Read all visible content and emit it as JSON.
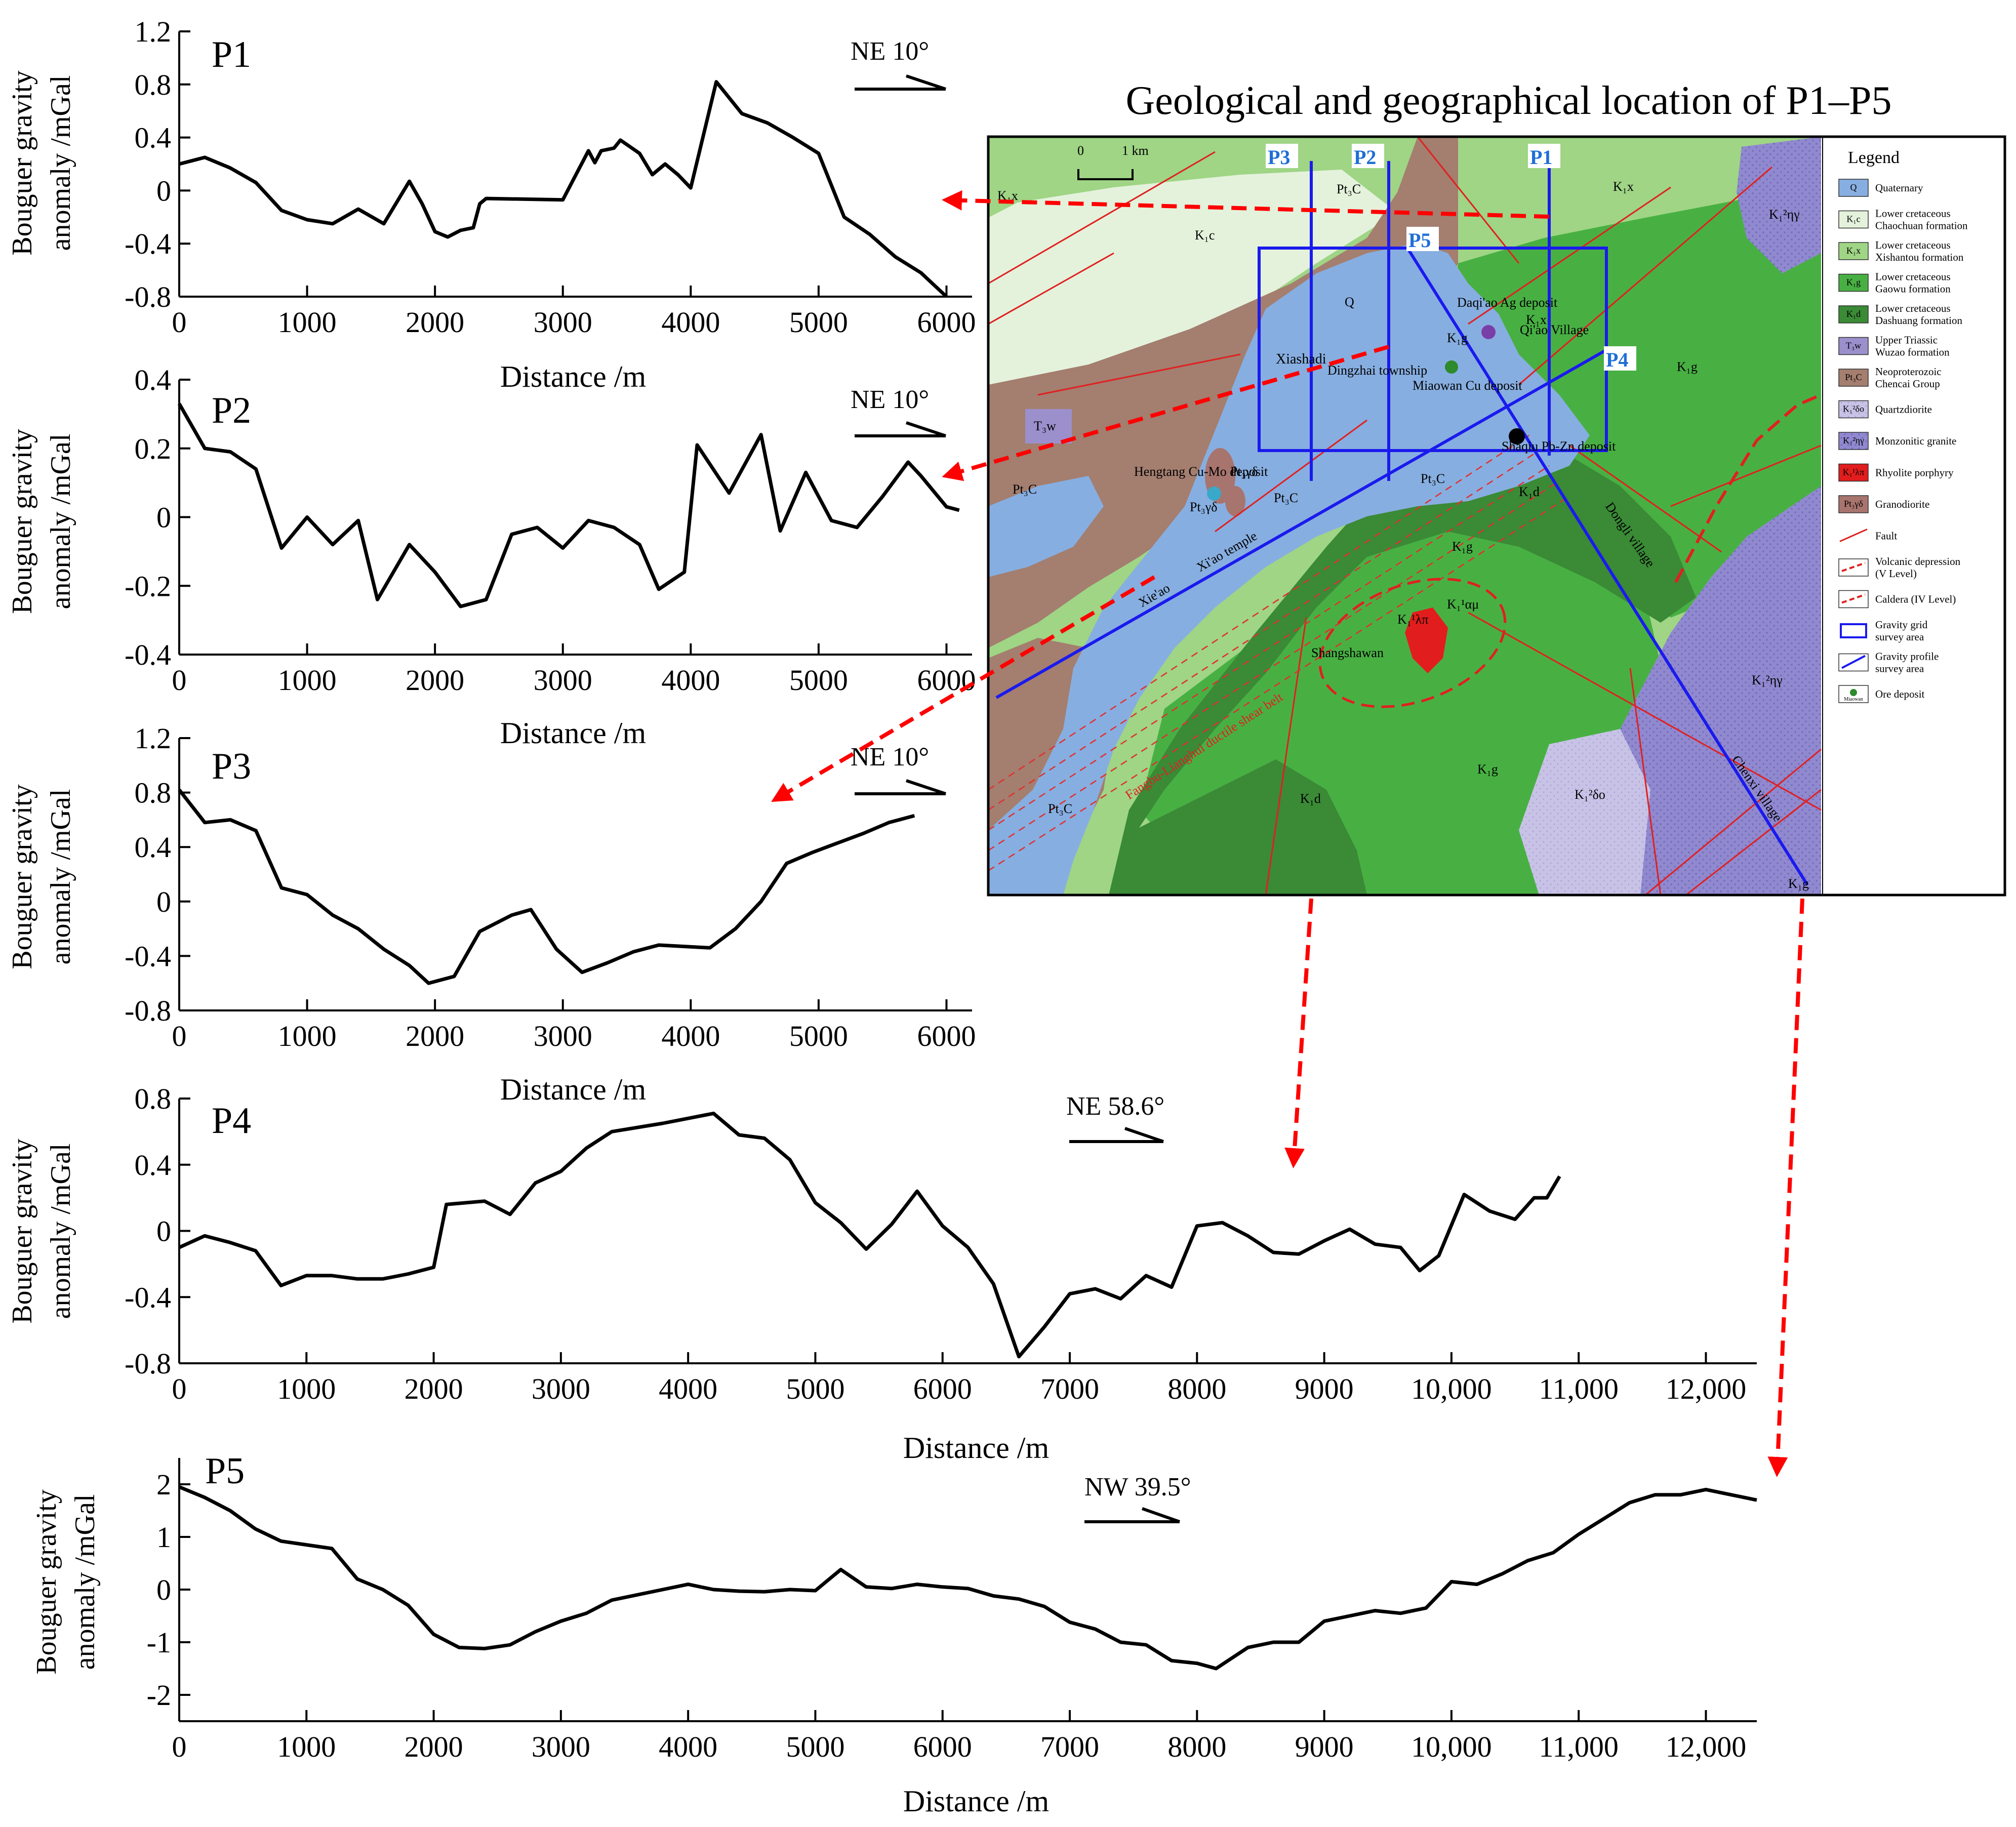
{
  "figure_title": "Geological and geographical location of P1–P5",
  "colors": {
    "line": "#000000",
    "arrow": "#ff0000",
    "profile_line": "#1a1aee",
    "profile_label": "#1f6fd6",
    "quaternary": "#87aee0",
    "chaochuan": "#e4f2dc",
    "xishantou": "#9fd585",
    "gaowu": "#48b043",
    "dashuang": "#3a8a36",
    "wuzao": "#9b8fcc",
    "chencai": "#a47e6f",
    "quartzdiorite": "#c8c3e6",
    "monzonitic": "#9089cf",
    "rhyolite": "#e21d1d",
    "granodiorite": "#a8746e"
  },
  "chart_data": [
    {
      "type": "line",
      "label": "P1",
      "xlabel": "Distance /m",
      "ylabel_line1": "Bouguer gravity",
      "ylabel_line2": "anomaly /mGal",
      "direction": "NE 10°",
      "xlim": [
        0,
        6200
      ],
      "ylim": [
        -0.8,
        1.2
      ],
      "xticks": [
        0,
        1000,
        2000,
        3000,
        4000,
        5000,
        6000
      ],
      "xtick_labels": [
        "0",
        "1000",
        "2000",
        "3000",
        "4000",
        "5000",
        "6000"
      ],
      "yticks": [
        -0.8,
        -0.4,
        0,
        0.4,
        0.8,
        1.2
      ],
      "ytick_labels": [
        "-0.8",
        "-0.4",
        "0",
        "0.4",
        "0.8",
        "1.2"
      ],
      "x": [
        0,
        200,
        400,
        600,
        800,
        1000,
        1200,
        1400,
        1600,
        1800,
        1900,
        2000,
        2100,
        2200,
        2300,
        2350,
        2400,
        3000,
        3200,
        3250,
        3300,
        3400,
        3450,
        3600,
        3700,
        3800,
        3900,
        4000,
        4200,
        4400,
        4600,
        4800,
        5000,
        5200,
        5400,
        5600,
        5800,
        6000
      ],
      "values": [
        0.2,
        0.25,
        0.17,
        0.06,
        -0.15,
        -0.22,
        -0.25,
        -0.14,
        -0.25,
        0.07,
        -0.1,
        -0.31,
        -0.35,
        -0.3,
        -0.28,
        -0.1,
        -0.06,
        -0.07,
        0.3,
        0.21,
        0.3,
        0.32,
        0.38,
        0.28,
        0.12,
        0.2,
        0.12,
        0.02,
        0.82,
        0.58,
        0.51,
        0.4,
        0.28,
        -0.2,
        -0.33,
        -0.5,
        -0.62,
        -0.8
      ]
    },
    {
      "type": "line",
      "label": "P2",
      "xlabel": "Distance /m",
      "ylabel_line1": "Bouguer gravity",
      "ylabel_line2": "anomaly /mGal",
      "direction": "NE 10°",
      "xlim": [
        0,
        6200
      ],
      "ylim": [
        -0.4,
        0.4
      ],
      "xticks": [
        0,
        1000,
        2000,
        3000,
        4000,
        5000,
        6000
      ],
      "xtick_labels": [
        "0",
        "1000",
        "2000",
        "3000",
        "4000",
        "5000",
        "6000"
      ],
      "yticks": [
        -0.4,
        -0.2,
        0,
        0.2,
        0.4
      ],
      "ytick_labels": [
        "-0.4",
        "-0.2",
        "0",
        "0.2",
        "0.4"
      ],
      "x": [
        0,
        200,
        400,
        600,
        800,
        1000,
        1200,
        1400,
        1550,
        1800,
        2000,
        2200,
        2400,
        2600,
        2800,
        3000,
        3200,
        3400,
        3600,
        3750,
        3950,
        4050,
        4300,
        4550,
        4700,
        4900,
        5100,
        5300,
        5500,
        5700,
        5800,
        6000,
        6100
      ],
      "values": [
        0.33,
        0.2,
        0.19,
        0.14,
        -0.09,
        0.0,
        -0.08,
        -0.01,
        -0.24,
        -0.08,
        -0.16,
        -0.26,
        -0.24,
        -0.05,
        -0.03,
        -0.09,
        -0.01,
        -0.03,
        -0.08,
        -0.21,
        -0.16,
        0.21,
        0.07,
        0.24,
        -0.04,
        0.13,
        -0.01,
        -0.03,
        0.06,
        0.16,
        0.12,
        0.03,
        0.02
      ]
    },
    {
      "type": "line",
      "label": "P3",
      "xlabel": "Distance /m",
      "ylabel_line1": "Bouguer gravity",
      "ylabel_line2": "anomaly /mGal",
      "direction": "NE 10°",
      "xlim": [
        0,
        6200
      ],
      "ylim": [
        -0.8,
        1.2
      ],
      "xticks": [
        0,
        1000,
        2000,
        3000,
        4000,
        5000,
        6000
      ],
      "xtick_labels": [
        "0",
        "1000",
        "2000",
        "3000",
        "4000",
        "5000",
        "6000"
      ],
      "yticks": [
        -0.8,
        -0.4,
        0,
        0.4,
        0.8,
        1.2
      ],
      "ytick_labels": [
        "-0.8",
        "-0.4",
        "0",
        "0.4",
        "0.8",
        "1.2"
      ],
      "x": [
        0,
        200,
        400,
        600,
        800,
        1000,
        1200,
        1400,
        1600,
        1800,
        1950,
        2150,
        2350,
        2600,
        2750,
        2950,
        3150,
        3350,
        3550,
        3750,
        3950,
        4150,
        4350,
        4550,
        4750,
        4950,
        5150,
        5350,
        5550,
        5750
      ],
      "values": [
        0.82,
        0.58,
        0.6,
        0.52,
        0.1,
        0.05,
        -0.1,
        -0.2,
        -0.35,
        -0.47,
        -0.6,
        -0.55,
        -0.22,
        -0.1,
        -0.06,
        -0.35,
        -0.52,
        -0.45,
        -0.37,
        -0.32,
        -0.33,
        -0.34,
        -0.2,
        0.0,
        0.28,
        0.36,
        0.43,
        0.5,
        0.58,
        0.63
      ]
    },
    {
      "type": "line",
      "label": "P4",
      "xlabel": "Distance /m",
      "ylabel_line1": "Bouguer gravity",
      "ylabel_line2": "anomaly /mGal",
      "direction": "NE 58.6°",
      "xlim": [
        0,
        12400
      ],
      "ylim": [
        -0.8,
        0.8
      ],
      "xticks": [
        0,
        1000,
        2000,
        3000,
        4000,
        5000,
        6000,
        7000,
        8000,
        9000,
        10000,
        11000,
        12000
      ],
      "xtick_labels": [
        "0",
        "1000",
        "2000",
        "3000",
        "4000",
        "5000",
        "6000",
        "7000",
        "8000",
        "9000",
        "10,000",
        "11,000",
        "12,000"
      ],
      "yticks": [
        -0.8,
        -0.4,
        0,
        0.4,
        0.8
      ],
      "ytick_labels": [
        "-0.8",
        "-0.4",
        "0",
        "0.4",
        "0.8"
      ],
      "x": [
        0,
        200,
        400,
        600,
        800,
        1000,
        1200,
        1400,
        1600,
        1800,
        2000,
        2100,
        2400,
        2600,
        2800,
        3000,
        3200,
        3400,
        3800,
        4200,
        4400,
        4600,
        4800,
        5000,
        5200,
        5400,
        5600,
        5800,
        6000,
        6200,
        6400,
        6600,
        6800,
        7000,
        7200,
        7400,
        7600,
        7800,
        8000,
        8200,
        8400,
        8600,
        8800,
        9000,
        9200,
        9400,
        9600,
        9750,
        9900,
        10100,
        10300,
        10500,
        10650,
        10750,
        10850
      ],
      "values": [
        -0.1,
        -0.03,
        -0.07,
        -0.12,
        -0.33,
        -0.27,
        -0.27,
        -0.29,
        -0.29,
        -0.26,
        -0.22,
        0.16,
        0.18,
        0.1,
        0.29,
        0.36,
        0.5,
        0.6,
        0.65,
        0.71,
        0.58,
        0.56,
        0.43,
        0.17,
        0.05,
        -0.11,
        0.04,
        0.24,
        0.03,
        -0.1,
        -0.32,
        -0.76,
        -0.58,
        -0.38,
        -0.35,
        -0.41,
        -0.27,
        -0.34,
        0.03,
        0.05,
        -0.03,
        -0.13,
        -0.14,
        -0.06,
        0.01,
        -0.08,
        -0.1,
        -0.24,
        -0.15,
        0.22,
        0.12,
        0.07,
        0.2,
        0.2,
        0.33
      ]
    },
    {
      "type": "line",
      "label": "P5",
      "xlabel": "Distance /m",
      "ylabel_line1": "Bouguer gravity",
      "ylabel_line2": "anomaly /mGal",
      "direction": "NW 39.5°",
      "xlim": [
        0,
        12400
      ],
      "ylim": [
        -2.5,
        2.5
      ],
      "xticks": [
        0,
        1000,
        2000,
        3000,
        4000,
        5000,
        6000,
        7000,
        8000,
        9000,
        10000,
        11000,
        12000
      ],
      "xtick_labels": [
        "0",
        "1000",
        "2000",
        "3000",
        "4000",
        "5000",
        "6000",
        "7000",
        "8000",
        "9000",
        "10,000",
        "11,000",
        "12,000"
      ],
      "yticks": [
        -2,
        -1,
        0,
        1,
        2
      ],
      "ytick_labels": [
        "-2",
        "-1",
        "0",
        "1",
        "2"
      ],
      "x": [
        0,
        200,
        400,
        600,
        800,
        1000,
        1200,
        1400,
        1600,
        1800,
        2000,
        2200,
        2400,
        2600,
        2800,
        3000,
        3200,
        3400,
        3600,
        3800,
        4000,
        4200,
        4400,
        4600,
        4800,
        5000,
        5200,
        5400,
        5600,
        5800,
        6000,
        6200,
        6400,
        6600,
        6800,
        7000,
        7200,
        7400,
        7600,
        7800,
        8000,
        8150,
        8400,
        8600,
        8800,
        9000,
        9200,
        9400,
        9600,
        9800,
        10000,
        10200,
        10400,
        10600,
        10800,
        11000,
        11200,
        11400,
        11600,
        11800,
        12000,
        12200,
        12400
      ],
      "values": [
        1.95,
        1.75,
        1.5,
        1.15,
        0.92,
        0.85,
        0.78,
        0.2,
        0.0,
        -0.3,
        -0.85,
        -1.1,
        -1.12,
        -1.05,
        -0.8,
        -0.6,
        -0.45,
        -0.2,
        -0.1,
        0.0,
        0.1,
        0.0,
        -0.03,
        -0.04,
        0.0,
        -0.02,
        0.38,
        0.05,
        0.02,
        0.1,
        0.05,
        0.02,
        -0.12,
        -0.18,
        -0.32,
        -0.62,
        -0.75,
        -1.0,
        -1.05,
        -1.35,
        -1.4,
        -1.5,
        -1.1,
        -1.0,
        -1.0,
        -0.6,
        -0.5,
        -0.4,
        -0.45,
        -0.35,
        0.15,
        0.1,
        0.3,
        0.55,
        0.7,
        1.05,
        1.35,
        1.65,
        1.8,
        1.8,
        1.9,
        1.8,
        1.7
      ]
    }
  ],
  "map": {
    "scale_label": "1 km",
    "scale_zero": "0",
    "profile_labels": [
      "P1",
      "P2",
      "P3",
      "P4",
      "P5"
    ],
    "places": {
      "xiashadi": "Xiashadi",
      "dingzhai": "Dingzhai township",
      "miaowan": "Miaowan Cu deposit",
      "daqiao": "Daqi'ao Ag deposit",
      "qiao_village": "Qi'ao Village",
      "shaqiu": "Shaqiu Pb-Zn deposit",
      "hengtang": "Hengtang Cu-Mo deposit",
      "xiao_temple": "Xi'ao temple",
      "xieao": "Xie'ao",
      "shangshawan": "Shangshawan",
      "dongli": "Dongli village",
      "chenxi": "Chenxi village",
      "shear_belt": "Fangbu-Lianghui ductile shear belt"
    },
    "units": {
      "k1x_a": "K₁x",
      "k1x_b": "K₁x",
      "k1x_c": "K₁x",
      "k1c": "K₁c",
      "q": "Q",
      "k1g_a": "K₁g",
      "k1g_b": "K₁g",
      "k1g_c": "K₁g",
      "k1g_d": "K₁g",
      "k1g_e": "K₁g",
      "k1d_a": "K₁d",
      "k1d_b": "K₁d",
      "pt3c_a": "Pt₃C",
      "pt3c_b": "Pt₃C",
      "pt3c_c": "Pt₃C",
      "pt3c_d": "Pt₃C",
      "pt3c_e": "Pt₃C",
      "t3w": "T₃w",
      "granod_a": "Pt₃γδ",
      "granod_b": "Pt₃γδ",
      "k12eta_a": "K₁²ηγ",
      "k12eta_b": "K₁²ηγ",
      "k12delta": "K₁²δo",
      "k11lambda": "K₁¹λπ",
      "k11alpha": "K₁¹αμ"
    },
    "legend_title": "Legend",
    "legend": [
      {
        "sym": "Q",
        "text1": "Quaternary",
        "text2": ""
      },
      {
        "sym": "K₁c",
        "text1": "Lower cretaceous",
        "text2": "Chaochuan formation"
      },
      {
        "sym": "K₁x",
        "text1": "Lower cretaceous",
        "text2": "Xishantou formation"
      },
      {
        "sym": "K₁g",
        "text1": "Lower cretaceous",
        "text2": "Gaowu formation"
      },
      {
        "sym": "K₁d",
        "text1": "Lower cretaceous",
        "text2": "Dashuang formation"
      },
      {
        "sym": "T₃w",
        "text1": "Upper Triassic",
        "text2": "Wuzao formation"
      },
      {
        "sym": "Pt₃C",
        "text1": "Neoproterozoic",
        "text2": "Chencai Group"
      },
      {
        "sym": "K₁²δo",
        "text1": "Quartzdiorite",
        "text2": ""
      },
      {
        "sym": "K₁²ηγ",
        "text1": "Monzonitic granite",
        "text2": ""
      },
      {
        "sym": "K₁¹λπ",
        "text1": "Rhyolite porphyry",
        "text2": ""
      },
      {
        "sym": "Pt₃γδ",
        "text1": "Granodiorite",
        "text2": ""
      },
      {
        "sym": "",
        "text1": "Fault",
        "text2": ""
      },
      {
        "sym": "",
        "text1": "Volcanic depression",
        "text2": "(V Level)"
      },
      {
        "sym": "",
        "text1": "Caldera (IV Level)",
        "text2": ""
      },
      {
        "sym": "",
        "text1": "Gravity grid",
        "text2": "survey area"
      },
      {
        "sym": "",
        "text1": "Gravity profile",
        "text2": "survey area"
      },
      {
        "sym": "Miaowan",
        "text1": "Ore deposit",
        "text2": ""
      }
    ]
  }
}
